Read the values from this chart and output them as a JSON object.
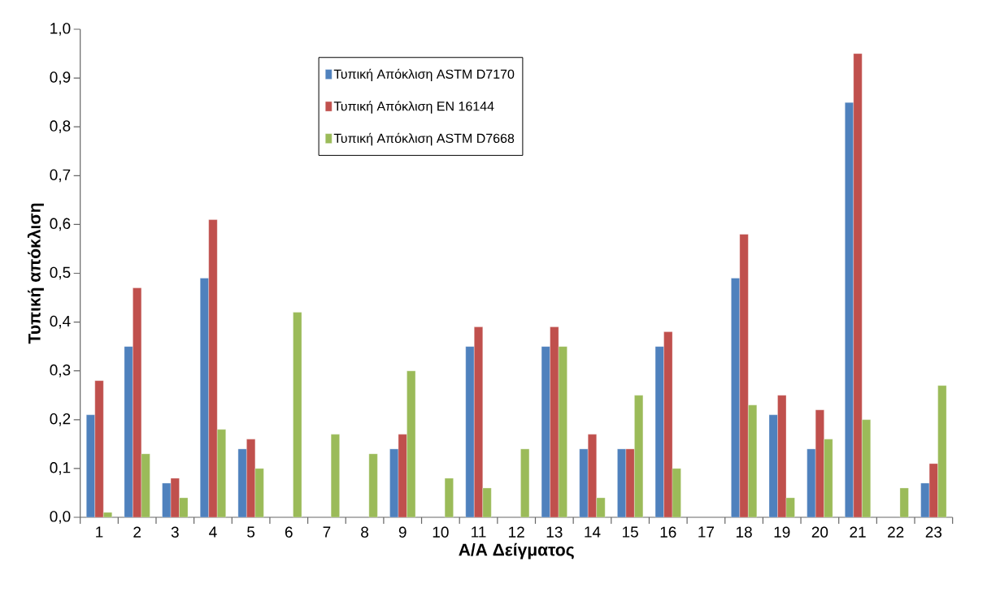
{
  "chart_data": {
    "type": "bar",
    "xlabel": "Α/Α Δείγματος",
    "ylabel": "Τυπική απόκλιση",
    "categories": [
      "1",
      "2",
      "3",
      "4",
      "5",
      "6",
      "7",
      "8",
      "9",
      "10",
      "11",
      "12",
      "13",
      "14",
      "15",
      "16",
      "17",
      "18",
      "19",
      "20",
      "21",
      "22",
      "23"
    ],
    "series": [
      {
        "name": "Τυπική Απόκλιση ASTM D7170",
        "color": "#4f81bd",
        "values": [
          0.21,
          0.35,
          0.07,
          0.49,
          0.14,
          null,
          null,
          null,
          0.14,
          null,
          0.35,
          null,
          0.35,
          0.14,
          0.14,
          0.35,
          null,
          0.49,
          0.21,
          0.14,
          0.85,
          null,
          0.07
        ]
      },
      {
        "name": "Τυπική Απόκλιση EN 16144",
        "color": "#c0504d",
        "values": [
          0.28,
          0.47,
          0.08,
          0.61,
          0.16,
          null,
          null,
          null,
          0.17,
          null,
          0.39,
          null,
          0.39,
          0.17,
          0.14,
          0.38,
          null,
          0.58,
          0.25,
          0.22,
          0.95,
          null,
          0.11
        ]
      },
      {
        "name": "Τυπική Απόκλιση ASTM D7668",
        "color": "#9bbb59",
        "values": [
          0.01,
          0.13,
          0.04,
          0.18,
          0.1,
          0.42,
          0.17,
          0.13,
          0.3,
          0.08,
          0.06,
          0.14,
          0.35,
          0.04,
          0.25,
          0.1,
          null,
          0.23,
          0.04,
          0.16,
          0.2,
          0.06,
          0.27
        ]
      }
    ],
    "ylim": [
      0,
      1.0
    ],
    "yticks": [
      {
        "value": 0,
        "label": "0,0"
      },
      {
        "value": 0.1,
        "label": "0,1"
      },
      {
        "value": 0.2,
        "label": "0,2"
      },
      {
        "value": 0.3,
        "label": "0,3"
      },
      {
        "value": 0.4,
        "label": "0,4"
      },
      {
        "value": 0.5,
        "label": "0,5"
      },
      {
        "value": 0.6,
        "label": "0,6"
      },
      {
        "value": 0.7,
        "label": "0,7"
      },
      {
        "value": 0.8,
        "label": "0,8"
      },
      {
        "value": 0.9,
        "label": "0,9"
      },
      {
        "value": 1.0,
        "label": "1,0"
      }
    ],
    "grid": false,
    "legend": "top"
  }
}
